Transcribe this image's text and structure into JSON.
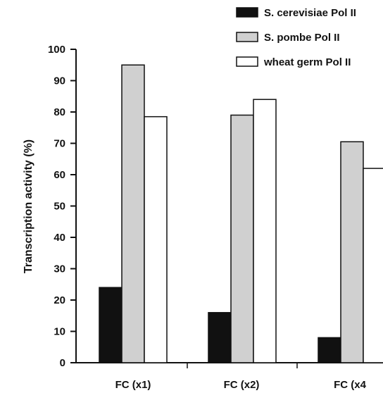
{
  "chart_data": {
    "type": "bar",
    "title": "",
    "xlabel": "",
    "ylabel": "Transcription activity (%)",
    "ylim": [
      0,
      100
    ],
    "yticks": [
      "0",
      "10",
      "20",
      "30",
      "40",
      "50",
      "60",
      "70",
      "80",
      "90",
      "100"
    ],
    "categories": [
      "FC (x1)",
      "FC (x2)",
      "FC (x4"
    ],
    "series": [
      {
        "name": "S. cerevisiae Pol II",
        "values": [
          24,
          16,
          8
        ],
        "color": "#111111"
      },
      {
        "name": "S. pombe Pol II",
        "values": [
          95,
          79,
          70.5
        ],
        "color": "#d0d0d0"
      },
      {
        "name": "wheat germ Pol II",
        "values": [
          78.5,
          84,
          62
        ],
        "color": "#ffffff"
      }
    ],
    "legend": "top-right",
    "grid": false
  }
}
